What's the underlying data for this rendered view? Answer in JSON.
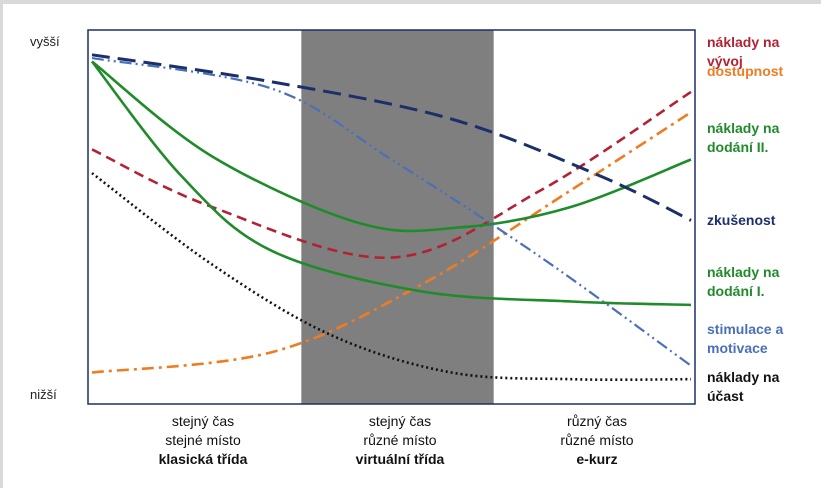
{
  "chart_data": {
    "type": "line",
    "y_axis": {
      "top_label": "vyšší",
      "bottom_label": "nižší"
    },
    "categories": [
      {
        "line1": "stejný čas",
        "line2": "stejné místo",
        "name": "klasická třída"
      },
      {
        "line1": "stejný čas",
        "line2": "různé místo",
        "name": "virtuální třída"
      },
      {
        "line1": "různý čas",
        "line2": "různé místo",
        "name": "e-kurz"
      }
    ],
    "highlighted_category": 1,
    "x_range": [
      0,
      1
    ],
    "y_range": [
      0,
      1
    ],
    "series": [
      {
        "name": "náklady na vývoj",
        "color": "#b22234",
        "style": "dashed",
        "points": [
          [
            0,
            0.7
          ],
          [
            0.2,
            0.53
          ],
          [
            0.5,
            0.38
          ],
          [
            0.75,
            0.58
          ],
          [
            1.0,
            0.87
          ]
        ]
      },
      {
        "name": "dostupnost",
        "color": "#f07c22",
        "style": "dash-dot",
        "points": [
          [
            0,
            0.04
          ],
          [
            0.3,
            0.1
          ],
          [
            0.55,
            0.3
          ],
          [
            0.8,
            0.58
          ],
          [
            1.0,
            0.81
          ]
        ]
      },
      {
        "name": "náklady na dodání II.",
        "color": "#1f8b2a",
        "style": "solid",
        "points": [
          [
            0,
            0.96
          ],
          [
            0.2,
            0.68
          ],
          [
            0.45,
            0.48
          ],
          [
            0.62,
            0.47
          ],
          [
            0.8,
            0.53
          ],
          [
            1.0,
            0.67
          ]
        ]
      },
      {
        "name": "zkušenost",
        "color": "#1b2f6b",
        "style": "long-dash",
        "points": [
          [
            0,
            0.98
          ],
          [
            0.3,
            0.9
          ],
          [
            0.6,
            0.79
          ],
          [
            0.85,
            0.62
          ],
          [
            1.0,
            0.49
          ]
        ]
      },
      {
        "name": "náklady na dodání I.",
        "color": "#1f8b2a",
        "style": "solid",
        "points": [
          [
            0,
            0.96
          ],
          [
            0.15,
            0.62
          ],
          [
            0.3,
            0.4
          ],
          [
            0.55,
            0.28
          ],
          [
            0.8,
            0.25
          ],
          [
            1.0,
            0.24
          ]
        ]
      },
      {
        "name": "stimulace a motivace",
        "color": "#4a70b8",
        "style": "dash-dot-dot",
        "points": [
          [
            0,
            0.97
          ],
          [
            0.3,
            0.88
          ],
          [
            0.5,
            0.67
          ],
          [
            0.75,
            0.38
          ],
          [
            1.0,
            0.06
          ]
        ]
      },
      {
        "name": "náklady na účast",
        "color": "#111111",
        "style": "dotted",
        "points": [
          [
            0,
            0.63
          ],
          [
            0.2,
            0.36
          ],
          [
            0.4,
            0.15
          ],
          [
            0.6,
            0.04
          ],
          [
            0.8,
            0.02
          ],
          [
            1.0,
            0.02
          ]
        ]
      }
    ],
    "legend": {
      "placement": "right",
      "entries": [
        {
          "text": "náklady na vývoj",
          "lines": [
            "náklady na",
            "vývoj"
          ],
          "color": "#b22234"
        },
        {
          "text": "dostupnost",
          "lines": [
            "dostupnost"
          ],
          "color": "#f07c22"
        },
        {
          "text": "náklady na dodání II.",
          "lines": [
            "náklady na",
            "dodání II."
          ],
          "color": "#1f8b2a"
        },
        {
          "text": "zkušenost",
          "lines": [
            "zkušenost"
          ],
          "color": "#1b2f6b"
        },
        {
          "text": "náklady na dodání I.",
          "lines": [
            "náklady na",
            "dodání I."
          ],
          "color": "#1f8b2a"
        },
        {
          "text": "stimulace a motivace",
          "lines": [
            "stimulace a",
            "motivace"
          ],
          "color": "#4a70b8"
        },
        {
          "text": "náklady na účast",
          "lines": [
            "náklady na",
            "účast"
          ],
          "color": "#111111"
        }
      ]
    },
    "grid": false
  }
}
